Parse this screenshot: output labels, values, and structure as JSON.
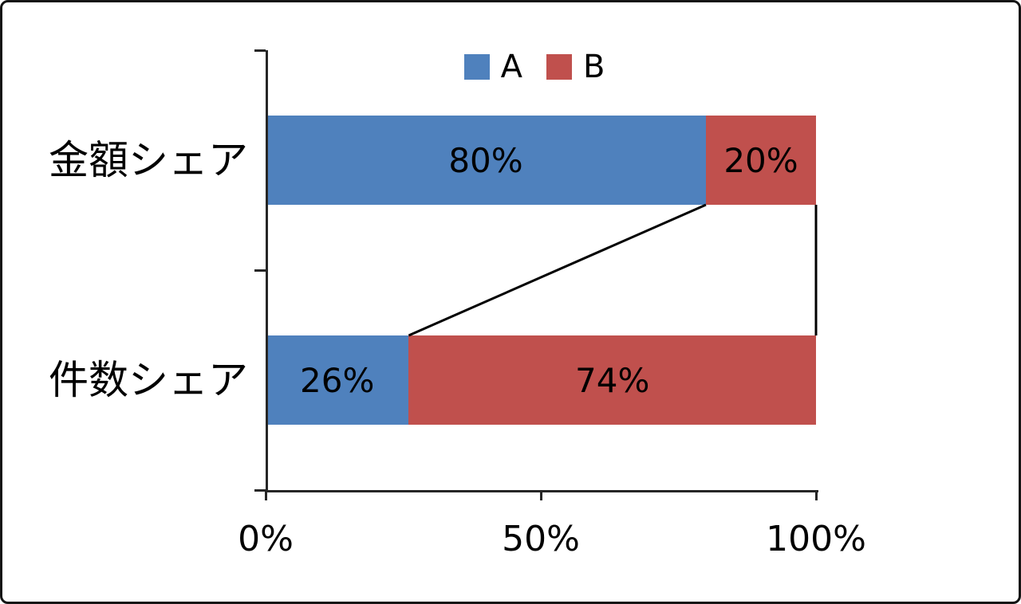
{
  "chart_data": {
    "type": "bar",
    "orientation": "horizontal",
    "stacked": true,
    "percent_stacked": true,
    "title": "",
    "xlabel": "",
    "ylabel": "",
    "categories": [
      "金額シェア",
      "件数シェア"
    ],
    "series": [
      {
        "name": "A",
        "color": "#4F81BD",
        "values": [
          80,
          26
        ]
      },
      {
        "name": "B",
        "color": "#C0504D",
        "values": [
          20,
          74
        ]
      }
    ],
    "data_labels": [
      [
        "80%",
        "20%"
      ],
      [
        "26%",
        "74%"
      ]
    ],
    "x_ticks": [
      "0%",
      "50%",
      "100%"
    ],
    "xlim": [
      0,
      100
    ],
    "grid": false,
    "legend_position": "top",
    "series_connector_lines": true,
    "colors": {
      "series_a": "#4F81BD",
      "series_b": "#C0504D",
      "axis": "#262626",
      "connector": "#000000",
      "text": "#000000",
      "background": "#ffffff"
    }
  }
}
